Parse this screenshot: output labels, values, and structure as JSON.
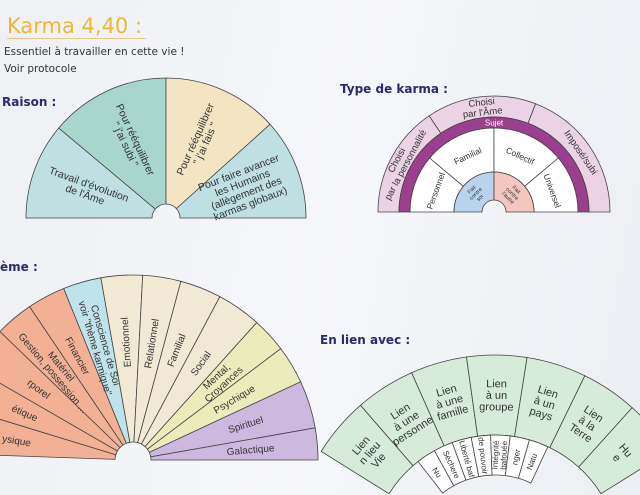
{
  "header": {
    "title": "Karma 4,40 :",
    "line1": "Essentiel à travailler en cette vie !",
    "line2": "Voir protocole"
  },
  "sections": {
    "raison": "Raison :",
    "type": "Type de karma :",
    "theme": "ème :",
    "lien": "En lien avec :"
  },
  "raison": [
    {
      "lines": [
        "Travail d'évolution",
        "de l'Âme"
      ],
      "color": "#bfe0e2"
    },
    {
      "lines": [
        "Pour rééquilibrer",
        "\" j'ai subi \""
      ],
      "color": "#a8d6cd"
    },
    {
      "lines": [
        "Pour rééquilibrer",
        "\" j'ai fais \""
      ],
      "color": "#f3e5c2"
    },
    {
      "lines": [
        "Pour faire avancer",
        "les Humains",
        "(allègement des",
        "karmas globaux)"
      ],
      "color": "#bfe0e3"
    }
  ],
  "type_karma": {
    "outer": [
      {
        "lines": [
          "Choisi",
          "par la personnalité"
        ],
        "color": "#ebd3e6"
      },
      {
        "lines": [
          "Choisi",
          "par l'Âme"
        ],
        "color": "#ebd3e6"
      },
      {
        "lines": [
          "Imposé/subi"
        ],
        "color": "#ebd3e6"
      }
    ],
    "band": {
      "label": "Sujet",
      "color": "#9c3f8e"
    },
    "middle": [
      {
        "lines": [
          "Personnel"
        ],
        "color": "#ffffff"
      },
      {
        "lines": [
          "Familial"
        ],
        "color": "#ffffff"
      },
      {
        "lines": [
          "Collectif"
        ],
        "color": "#ffffff"
      },
      {
        "lines": [
          "Universel"
        ],
        "color": "#ffffff"
      }
    ],
    "inner": [
      {
        "lines": [
          "Fait",
          "contre",
          "soi"
        ],
        "color": "#b9d3ee"
      },
      {
        "lines": [
          "Fait",
          "contre",
          "l'autre"
        ],
        "color": "#f4c6c0"
      }
    ]
  },
  "theme": [
    {
      "lines": [
        "ysique"
      ],
      "color": "#f2b195"
    },
    {
      "lines": [
        "étique"
      ],
      "color": "#f2b195"
    },
    {
      "lines": [
        "rporel"
      ],
      "color": "#f2b195"
    },
    {
      "lines": [
        "Matériel",
        "Gestion, possession ..."
      ],
      "color": "#f2b195"
    },
    {
      "lines": [
        "Financier"
      ],
      "color": "#f2b195"
    },
    {
      "lines": [
        "Conscience de Soi",
        "voir \"thème karmique\""
      ],
      "color": "#bfe3ea"
    },
    {
      "lines": [
        "Emotionnel"
      ],
      "color": "#f2e9d4"
    },
    {
      "lines": [
        "Relationnel"
      ],
      "color": "#f2e9d4"
    },
    {
      "lines": [
        "Familial"
      ],
      "color": "#f2e9d4"
    },
    {
      "lines": [
        "Social"
      ],
      "color": "#f2e9d4"
    },
    {
      "lines": [
        "Mental,",
        "Croyances"
      ],
      "color": "#ebebbc"
    },
    {
      "lines": [
        "Psychique"
      ],
      "color": "#ebebbc"
    },
    {
      "lines": [
        "Spirituel"
      ],
      "color": "#cdb8e0"
    },
    {
      "lines": [
        "Galactique"
      ],
      "color": "#cdb8e0"
    }
  ],
  "lien": {
    "outer": [
      {
        "lines": [
          "Lien",
          "n lieu",
          "Vie"
        ],
        "color": "#d6ebda"
      },
      {
        "lines": [
          "Lien",
          "à une",
          "personne"
        ],
        "color": "#d6ebda"
      },
      {
        "lines": [
          "Lien",
          "à une",
          "famille"
        ],
        "color": "#d6ebda"
      },
      {
        "lines": [
          "Lien",
          "à un",
          "groupe"
        ],
        "color": "#d6ebda"
      },
      {
        "lines": [
          "Lien",
          "à un",
          "pays"
        ],
        "color": "#d6ebda"
      },
      {
        "lines": [
          "Lien",
          "à la",
          "Terre"
        ],
        "color": "#d6ebda"
      },
      {
        "lines": [
          "Hu",
          "e"
        ],
        "color": "#d6ebda"
      }
    ],
    "inner": [
      {
        "lines": [
          "Nu"
        ],
        "color": "#ffffff"
      },
      {
        "lines": [
          "Séchere"
        ],
        "color": "#ffffff"
      },
      {
        "lines": [
          "Liberté baf"
        ],
        "color": "#ffffff"
      },
      {
        "lines": [
          "de pouvoir"
        ],
        "color": "#ffffff"
      },
      {
        "lines": [
          "Intégrité",
          "bafouée"
        ],
        "color": "#ffffff"
      },
      {
        "lines": [
          "nger"
        ],
        "color": "#ffffff"
      },
      {
        "lines": [
          "Natu"
        ],
        "color": "#ffffff"
      }
    ]
  }
}
